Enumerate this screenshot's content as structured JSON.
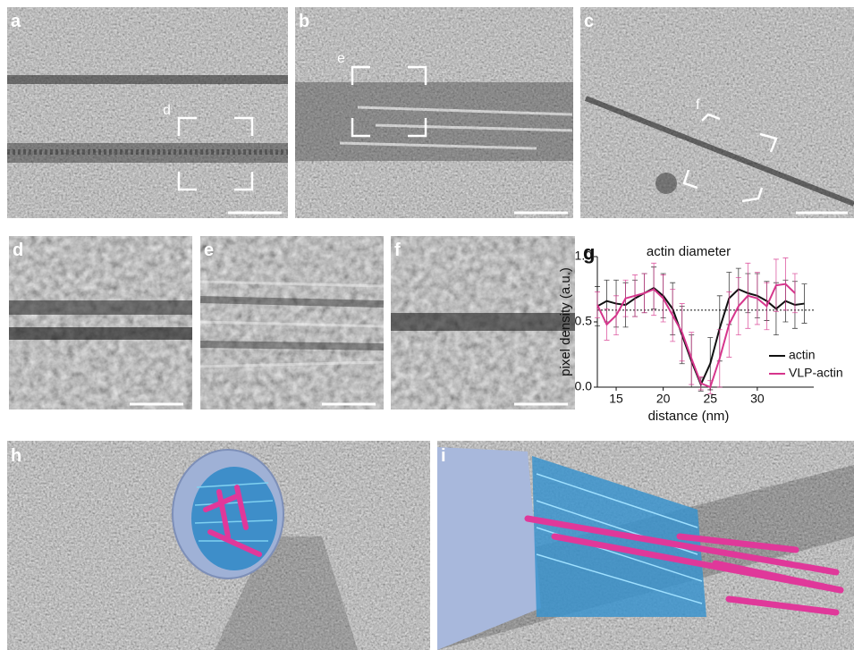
{
  "panel_labels": [
    "a",
    "b",
    "c",
    "d",
    "e",
    "f",
    "g",
    "h",
    "i"
  ],
  "box_labels": [
    "d",
    "e",
    "f"
  ],
  "chart_data": {
    "type": "line",
    "title": "actin diameter",
    "xlabel": "distance (nm)",
    "ylabel": "pixel density (a.u.)",
    "x": [
      13,
      14,
      15,
      16,
      17,
      18,
      19,
      20,
      21,
      22,
      23,
      24,
      25,
      26,
      27,
      28,
      29,
      30,
      31,
      32,
      33,
      34,
      35
    ],
    "series": [
      {
        "name": "actin",
        "color": "#111111",
        "values": [
          0.62,
          0.66,
          0.64,
          0.63,
          0.68,
          0.72,
          0.76,
          0.7,
          0.6,
          0.4,
          0.2,
          0.02,
          0.18,
          0.45,
          0.68,
          0.75,
          0.72,
          0.7,
          0.66,
          0.6,
          0.66,
          0.63,
          0.64
        ],
        "errors": [
          0.15,
          0.16,
          0.18,
          0.17,
          0.14,
          0.15,
          0.16,
          0.17,
          0.2,
          0.22,
          0.2,
          0.05,
          0.2,
          0.25,
          0.2,
          0.16,
          0.15,
          0.17,
          0.15,
          0.2,
          0.16,
          0.18,
          0.15
        ]
      },
      {
        "name": "VLP-actin",
        "color": "#d6358c",
        "values": [
          0.63,
          0.48,
          0.55,
          0.68,
          0.7,
          0.72,
          0.75,
          0.68,
          0.55,
          0.42,
          0.22,
          0.03,
          0.0,
          0.22,
          0.48,
          0.62,
          0.7,
          0.68,
          0.62,
          0.78,
          0.79,
          0.72,
          null
        ],
        "errors": [
          0.1,
          0.12,
          0.15,
          0.14,
          0.16,
          0.15,
          0.2,
          0.18,
          0.2,
          0.22,
          0.2,
          0.05,
          0.05,
          0.22,
          0.25,
          0.22,
          0.25,
          0.2,
          0.18,
          0.2,
          0.2,
          0.15,
          null
        ]
      }
    ],
    "xlim": [
      13,
      36
    ],
    "xticks": [
      15,
      20,
      25,
      30
    ],
    "ylim": [
      0,
      1
    ],
    "yticks": [
      {
        "value": 0,
        "label": "0.0"
      },
      {
        "value": 0.5,
        "label": "0.5"
      },
      {
        "value": 1,
        "label": "1.0"
      }
    ],
    "hline": 0.59,
    "legend": "right"
  }
}
